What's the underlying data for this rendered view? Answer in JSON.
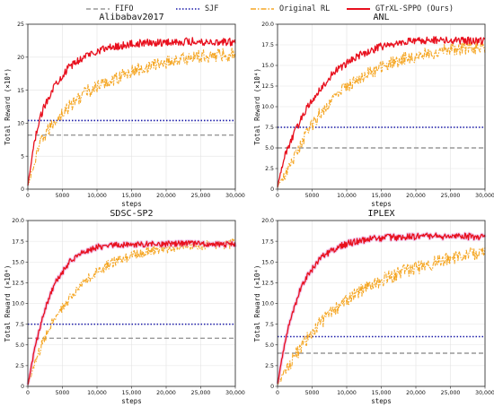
{
  "legend": [
    {
      "label": "FIFO",
      "color": "#999999",
      "style": "dashed"
    },
    {
      "label": "SJF",
      "color": "#1a1aa8",
      "style": "dotted"
    },
    {
      "label": "Original RL",
      "color": "#f5a623",
      "style": "dashdot"
    },
    {
      "label": "GTrXL-SPPO (Ours)",
      "color": "#e8101e",
      "style": "solid"
    }
  ],
  "chart_data": [
    {
      "type": "line",
      "title": "Alibabav2017",
      "xlabel": "steps",
      "ylabel": "Total Reward (×10⁴)",
      "xlim": [
        0,
        30000
      ],
      "ylim": [
        0,
        25
      ],
      "x_ticks": [
        "0",
        "5000",
        "10,000",
        "15,000",
        "20,000",
        "25,000",
        "30,000"
      ],
      "y_ticks": [
        "0",
        "5",
        "10",
        "15",
        "20",
        "25"
      ],
      "grid": true,
      "baselines": [
        {
          "name": "FIFO",
          "value": 8.2
        },
        {
          "name": "SJF",
          "value": 10.4
        }
      ],
      "series": [
        {
          "name": "Original RL",
          "x": [
            0,
            2000,
            4000,
            6000,
            8000,
            10000,
            12000,
            15000,
            18000,
            21000,
            24000,
            27000,
            30000
          ],
          "y": [
            0.5,
            7.5,
            10.5,
            12.5,
            14.5,
            15.5,
            16.5,
            17.8,
            18.8,
            19.5,
            20.0,
            20.3,
            20.5
          ],
          "noise": 1.0
        },
        {
          "name": "GTrXL-SPPO (Ours)",
          "x": [
            0,
            1000,
            2000,
            3000,
            4000,
            6000,
            8000,
            10000,
            12000,
            15000,
            18000,
            21000,
            24000,
            27000,
            30000
          ],
          "y": [
            0.5,
            7.5,
            11.5,
            14.0,
            16.0,
            18.5,
            20.0,
            21.0,
            21.5,
            22.0,
            22.2,
            22.3,
            22.4,
            22.3,
            22.3
          ],
          "noise": 0.6
        }
      ]
    },
    {
      "type": "line",
      "title": "ANL",
      "xlabel": "steps",
      "ylabel": "Total Reward (×10⁴)",
      "xlim": [
        0,
        30000
      ],
      "ylim": [
        0,
        20
      ],
      "x_ticks": [
        "0",
        "5000",
        "10,000",
        "15,000",
        "20,000",
        "25,000",
        "30,000"
      ],
      "y_ticks": [
        "0",
        "2.5",
        "5.0",
        "7.5",
        "10.0",
        "12.5",
        "15.0",
        "17.5",
        "20.0"
      ],
      "grid": true,
      "baselines": [
        {
          "name": "FIFO",
          "value": 5.0
        },
        {
          "name": "SJF",
          "value": 7.5
        }
      ],
      "series": [
        {
          "name": "Original RL",
          "x": [
            0,
            2000,
            4000,
            6000,
            8000,
            10000,
            12000,
            15000,
            18000,
            21000,
            24000,
            27000,
            30000
          ],
          "y": [
            0.3,
            3.0,
            6.5,
            9.0,
            11.0,
            12.5,
            13.5,
            14.8,
            15.8,
            16.3,
            16.8,
            17.0,
            17.2
          ],
          "noise": 0.8
        },
        {
          "name": "GTrXL-SPPO (Ours)",
          "x": [
            0,
            1000,
            2000,
            3000,
            4000,
            6000,
            8000,
            10000,
            12000,
            15000,
            18000,
            21000,
            24000,
            27000,
            30000
          ],
          "y": [
            0.3,
            4.0,
            6.0,
            7.8,
            9.5,
            12.0,
            14.0,
            15.3,
            16.3,
            17.3,
            17.8,
            18.0,
            18.1,
            18.0,
            18.0
          ],
          "noise": 0.45
        }
      ]
    },
    {
      "type": "line",
      "title": "SDSC-SP2",
      "xlabel": "steps",
      "ylabel": "Total Reward (×10⁴)",
      "xlim": [
        0,
        30000
      ],
      "ylim": [
        0,
        20
      ],
      "x_ticks": [
        "0",
        "5000",
        "10,000",
        "15,000",
        "20,000",
        "25,000",
        "30,000"
      ],
      "y_ticks": [
        "0",
        "2.5",
        "5.0",
        "7.5",
        "10.0",
        "12.5",
        "15.0",
        "17.5",
        "20.0"
      ],
      "grid": true,
      "baselines": [
        {
          "name": "FIFO",
          "value": 5.8
        },
        {
          "name": "SJF",
          "value": 7.5
        }
      ],
      "series": [
        {
          "name": "Original RL",
          "x": [
            0,
            2000,
            4000,
            6000,
            8000,
            10000,
            12000,
            15000,
            18000,
            21000,
            24000,
            27000,
            30000
          ],
          "y": [
            0.2,
            5.0,
            8.5,
            10.5,
            12.5,
            13.8,
            14.8,
            15.8,
            16.4,
            16.8,
            17.0,
            17.1,
            17.2
          ],
          "noise": 0.6
        },
        {
          "name": "GTrXL-SPPO (Ours)",
          "x": [
            0,
            1000,
            2000,
            3000,
            4000,
            6000,
            8000,
            10000,
            12000,
            15000,
            18000,
            21000,
            24000,
            27000,
            30000
          ],
          "y": [
            0.2,
            4.5,
            8.0,
            10.5,
            12.5,
            15.0,
            16.2,
            16.8,
            17.0,
            17.1,
            17.2,
            17.2,
            17.2,
            17.2,
            17.1
          ],
          "noise": 0.35
        }
      ]
    },
    {
      "type": "line",
      "title": "IPLEX",
      "xlabel": "steps",
      "ylabel": "Total Reward (×10⁴)",
      "xlim": [
        0,
        30000
      ],
      "ylim": [
        0,
        20
      ],
      "x_ticks": [
        "0",
        "5000",
        "10,000",
        "15,000",
        "20,000",
        "25,000",
        "30,000"
      ],
      "y_ticks": [
        "0",
        "2.5",
        "5.0",
        "7.5",
        "10.0",
        "12.5",
        "15.0",
        "17.5",
        "20.0"
      ],
      "grid": true,
      "baselines": [
        {
          "name": "FIFO",
          "value": 4.0
        },
        {
          "name": "SJF",
          "value": 6.0
        }
      ],
      "series": [
        {
          "name": "Original RL",
          "x": [
            0,
            2000,
            4000,
            6000,
            8000,
            10000,
            12000,
            15000,
            18000,
            21000,
            24000,
            27000,
            30000
          ],
          "y": [
            0.3,
            3.0,
            5.5,
            7.5,
            9.0,
            10.5,
            11.5,
            12.8,
            13.8,
            14.5,
            15.2,
            15.8,
            16.2
          ],
          "noise": 0.8
        },
        {
          "name": "GTrXL-SPPO (Ours)",
          "x": [
            0,
            1000,
            2000,
            3000,
            4000,
            6000,
            8000,
            10000,
            12000,
            15000,
            18000,
            21000,
            24000,
            27000,
            30000
          ],
          "y": [
            0.3,
            5.0,
            8.5,
            11.0,
            13.0,
            15.3,
            16.5,
            17.2,
            17.6,
            17.9,
            18.0,
            18.1,
            18.1,
            18.1,
            18.0
          ],
          "noise": 0.4
        }
      ]
    }
  ]
}
